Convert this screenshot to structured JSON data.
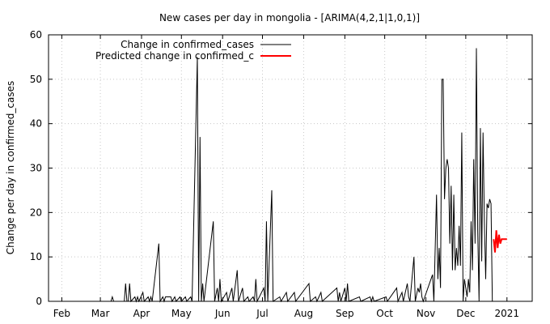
{
  "chart_data": {
    "type": "line",
    "title": "New cases per day in mongolia -  [ARIMA(4,2,1|1,0,1)]",
    "xlabel": "",
    "ylabel": "Change per day in confirmed_cases",
    "ylim": [
      0,
      60
    ],
    "yticks": [
      0,
      10,
      20,
      30,
      40,
      50,
      60
    ],
    "xlim": [
      "2020-01-22",
      "2021-01-20"
    ],
    "xticks": [
      {
        "label": "Feb",
        "date": "2020-02-01"
      },
      {
        "label": "Mar",
        "date": "2020-03-01"
      },
      {
        "label": "Apr",
        "date": "2020-04-01"
      },
      {
        "label": "May",
        "date": "2020-05-01"
      },
      {
        "label": "Jun",
        "date": "2020-06-01"
      },
      {
        "label": "Jul",
        "date": "2020-07-01"
      },
      {
        "label": "Aug",
        "date": "2020-08-01"
      },
      {
        "label": "Sep",
        "date": "2020-09-01"
      },
      {
        "label": "Oct",
        "date": "2020-10-01"
      },
      {
        "label": "Nov",
        "date": "2020-11-01"
      },
      {
        "label": "Dec",
        "date": "2020-12-01"
      },
      {
        "label": "2021",
        "date": "2021-01-01"
      }
    ],
    "grid": true,
    "legend_position": "top-left",
    "series": [
      {
        "name": "Change in confirmed_cases",
        "color": "#000000",
        "points": [
          [
            "2020-03-09",
            0
          ],
          [
            "2020-03-10",
            1
          ],
          [
            "2020-03-11",
            0
          ],
          [
            "2020-03-19",
            0
          ],
          [
            "2020-03-20",
            4
          ],
          [
            "2020-03-21",
            0
          ],
          [
            "2020-03-22",
            0
          ],
          [
            "2020-03-23",
            4
          ],
          [
            "2020-03-24",
            0
          ],
          [
            "2020-03-27",
            1
          ],
          [
            "2020-03-28",
            0
          ],
          [
            "2020-03-29",
            1
          ],
          [
            "2020-03-30",
            0
          ],
          [
            "2020-04-02",
            2
          ],
          [
            "2020-04-03",
            0
          ],
          [
            "2020-04-06",
            1
          ],
          [
            "2020-04-07",
            0
          ],
          [
            "2020-04-08",
            1
          ],
          [
            "2020-04-09",
            0
          ],
          [
            "2020-04-14",
            13
          ],
          [
            "2020-04-15",
            0
          ],
          [
            "2020-04-17",
            1
          ],
          [
            "2020-04-18",
            0
          ],
          [
            "2020-04-19",
            1
          ],
          [
            "2020-04-20",
            1
          ],
          [
            "2020-04-21",
            1
          ],
          [
            "2020-04-22",
            1
          ],
          [
            "2020-04-23",
            1
          ],
          [
            "2020-04-24",
            0
          ],
          [
            "2020-04-26",
            1
          ],
          [
            "2020-04-27",
            0
          ],
          [
            "2020-04-30",
            1
          ],
          [
            "2020-05-01",
            0
          ],
          [
            "2020-05-04",
            1
          ],
          [
            "2020-05-05",
            0
          ],
          [
            "2020-05-08",
            1
          ],
          [
            "2020-05-09",
            0
          ],
          [
            "2020-05-13",
            55
          ],
          [
            "2020-05-14",
            0
          ],
          [
            "2020-05-15",
            37
          ],
          [
            "2020-05-16",
            0
          ],
          [
            "2020-05-17",
            4
          ],
          [
            "2020-05-18",
            0
          ],
          [
            "2020-05-25",
            18
          ],
          [
            "2020-05-26",
            0
          ],
          [
            "2020-05-28",
            3
          ],
          [
            "2020-05-29",
            0
          ],
          [
            "2020-05-30",
            5
          ],
          [
            "2020-05-31",
            0
          ],
          [
            "2020-06-04",
            2
          ],
          [
            "2020-06-05",
            0
          ],
          [
            "2020-06-08",
            3
          ],
          [
            "2020-06-09",
            0
          ],
          [
            "2020-06-12",
            7
          ],
          [
            "2020-06-13",
            0
          ],
          [
            "2020-06-16",
            3
          ],
          [
            "2020-06-17",
            0
          ],
          [
            "2020-06-20",
            1
          ],
          [
            "2020-06-21",
            0
          ],
          [
            "2020-06-24",
            1
          ],
          [
            "2020-06-25",
            0
          ],
          [
            "2020-06-26",
            5
          ],
          [
            "2020-06-27",
            0
          ],
          [
            "2020-07-02",
            3
          ],
          [
            "2020-07-03",
            0
          ],
          [
            "2020-07-04",
            18
          ],
          [
            "2020-07-05",
            0
          ],
          [
            "2020-07-08",
            25
          ],
          [
            "2020-07-09",
            0
          ],
          [
            "2020-07-14",
            1
          ],
          [
            "2020-07-15",
            0
          ],
          [
            "2020-07-19",
            2
          ],
          [
            "2020-07-20",
            0
          ],
          [
            "2020-07-25",
            2
          ],
          [
            "2020-07-26",
            0
          ],
          [
            "2020-08-05",
            4
          ],
          [
            "2020-08-06",
            0
          ],
          [
            "2020-08-10",
            1
          ],
          [
            "2020-08-11",
            0
          ],
          [
            "2020-08-14",
            2
          ],
          [
            "2020-08-15",
            0
          ],
          [
            "2020-08-26",
            3
          ],
          [
            "2020-08-27",
            0
          ],
          [
            "2020-08-28",
            2
          ],
          [
            "2020-08-29",
            0
          ],
          [
            "2020-09-01",
            3
          ],
          [
            "2020-09-02",
            0
          ],
          [
            "2020-09-03",
            4
          ],
          [
            "2020-09-04",
            0
          ],
          [
            "2020-09-12",
            1
          ],
          [
            "2020-09-13",
            0
          ],
          [
            "2020-09-20",
            1
          ],
          [
            "2020-09-21",
            0
          ],
          [
            "2020-09-22",
            1
          ],
          [
            "2020-09-23",
            0
          ],
          [
            "2020-10-02",
            1
          ],
          [
            "2020-10-03",
            0
          ],
          [
            "2020-10-10",
            3
          ],
          [
            "2020-10-11",
            0
          ],
          [
            "2020-10-14",
            2
          ],
          [
            "2020-10-15",
            0
          ],
          [
            "2020-10-18",
            4
          ],
          [
            "2020-10-19",
            1
          ],
          [
            "2020-10-20",
            0
          ],
          [
            "2020-10-23",
            10
          ],
          [
            "2020-10-24",
            0
          ],
          [
            "2020-10-26",
            3
          ],
          [
            "2020-10-27",
            2
          ],
          [
            "2020-10-28",
            4
          ],
          [
            "2020-10-29",
            1
          ],
          [
            "2020-10-30",
            0
          ],
          [
            "2020-11-06",
            6
          ],
          [
            "2020-11-07",
            0
          ],
          [
            "2020-11-09",
            24
          ],
          [
            "2020-11-10",
            5
          ],
          [
            "2020-11-11",
            12
          ],
          [
            "2020-11-12",
            3
          ],
          [
            "2020-11-13",
            50
          ],
          [
            "2020-11-14",
            50
          ],
          [
            "2020-11-15",
            23
          ],
          [
            "2020-11-16",
            30
          ],
          [
            "2020-11-17",
            32
          ],
          [
            "2020-11-18",
            30
          ],
          [
            "2020-11-19",
            13
          ],
          [
            "2020-11-20",
            26
          ],
          [
            "2020-11-21",
            7
          ],
          [
            "2020-11-22",
            24
          ],
          [
            "2020-11-23",
            7
          ],
          [
            "2020-11-24",
            12
          ],
          [
            "2020-11-25",
            8
          ],
          [
            "2020-11-26",
            17
          ],
          [
            "2020-11-27",
            8
          ],
          [
            "2020-11-28",
            38
          ],
          [
            "2020-11-29",
            0
          ],
          [
            "2020-11-30",
            5
          ],
          [
            "2020-12-01",
            3
          ],
          [
            "2020-12-02",
            1
          ],
          [
            "2020-12-03",
            5
          ],
          [
            "2020-12-04",
            2
          ],
          [
            "2020-12-05",
            18
          ],
          [
            "2020-12-06",
            7
          ],
          [
            "2020-12-07",
            32
          ],
          [
            "2020-12-08",
            13
          ],
          [
            "2020-12-09",
            57
          ],
          [
            "2020-12-10",
            16
          ],
          [
            "2020-12-11",
            0
          ],
          [
            "2020-12-12",
            39
          ],
          [
            "2020-12-13",
            9
          ],
          [
            "2020-12-14",
            38
          ],
          [
            "2020-12-15",
            18
          ],
          [
            "2020-12-16",
            5
          ],
          [
            "2020-12-17",
            22
          ],
          [
            "2020-12-18",
            21
          ],
          [
            "2020-12-19",
            23
          ],
          [
            "2020-12-20",
            22
          ],
          [
            "2020-12-21",
            0
          ]
        ]
      },
      {
        "name": "Predicted change in confirmed_c",
        "color": "#ff0000",
        "points": [
          [
            "2020-12-22",
            14
          ],
          [
            "2020-12-23",
            11
          ],
          [
            "2020-12-24",
            16
          ],
          [
            "2020-12-25",
            12
          ],
          [
            "2020-12-26",
            15
          ],
          [
            "2020-12-27",
            13
          ],
          [
            "2020-12-28",
            14
          ],
          [
            "2020-12-29",
            14
          ],
          [
            "2020-12-30",
            14
          ],
          [
            "2020-12-31",
            14
          ],
          [
            "2021-01-01",
            14
          ]
        ]
      }
    ]
  }
}
